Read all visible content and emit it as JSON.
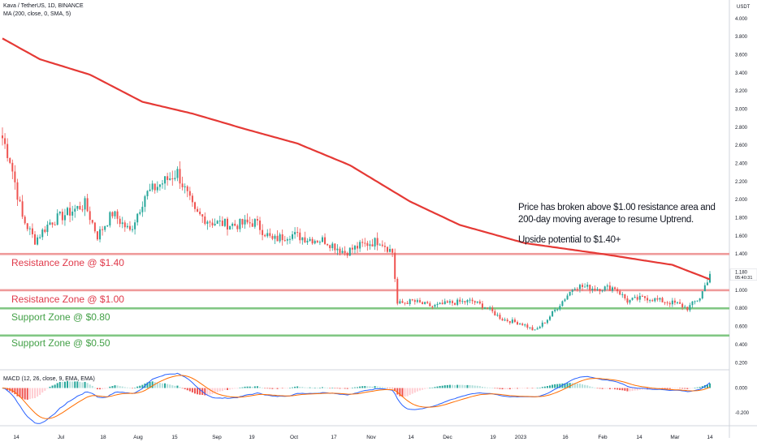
{
  "header": {
    "title": "Kava / TetherUS, 1D, BINANCE",
    "ma_label": "MA (200, close, 0, SMA, 5)",
    "macd_label": "MACD (12, 26, close, 9, EMA, EMA)"
  },
  "annotation": {
    "line1": "Price has broken above $1.00 resistance area and",
    "line2": "200-day moving average to resume Uptrend.",
    "line3": "Upside potential to $1.40+"
  },
  "zones": [
    {
      "label": "Resistance Zone @ $1.40",
      "price": 1.4,
      "kind": "resistance"
    },
    {
      "label": "Resistance Zone @ $1.00",
      "price": 1.0,
      "kind": "resistance"
    },
    {
      "label": "Support Zone @ $0.80",
      "price": 0.8,
      "kind": "support"
    },
    {
      "label": "Support Zone @ $0.50",
      "price": 0.5,
      "kind": "support"
    }
  ],
  "price_axis": {
    "currency": "USDT",
    "ticks": [
      "0.200",
      "0.400",
      "0.600",
      "0.800",
      "1.000",
      "1.200",
      "1.400",
      "1.600",
      "1.800",
      "2.000",
      "2.200",
      "2.400",
      "2.600",
      "2.800",
      "3.000",
      "3.200",
      "3.400",
      "3.600",
      "3.800",
      "4.000"
    ],
    "last_price": "1.180",
    "countdown": "05:40:31"
  },
  "macd_axis": {
    "ticks": [
      "0.000",
      "-0.200"
    ]
  },
  "time_axis": {
    "labels": [
      "14",
      "Jul",
      "18",
      "Aug",
      "15",
      "Sep",
      "19",
      "Oct",
      "17",
      "Nov",
      "14",
      "Dec",
      "19",
      "2023",
      "16",
      "Feb",
      "14",
      "Mar",
      "14"
    ]
  },
  "colors": {
    "up": "#26a69a",
    "down": "#ef5350",
    "ma": "#e53935",
    "resistance": "#ef9a9a",
    "support": "#81c784",
    "macd_line": "#2962ff",
    "signal_line": "#ff6d00"
  },
  "chart_data": {
    "type": "candlestick",
    "title": "Kava / TetherUS, 1D, BINANCE",
    "x_range": [
      "2022-06-05",
      "2023-03-15"
    ],
    "ylim": [
      0.2,
      4.0
    ],
    "close_keypoints": [
      {
        "date": "2022-06-05",
        "value": 2.68
      },
      {
        "date": "2022-06-08",
        "value": 2.45
      },
      {
        "date": "2022-06-13",
        "value": 1.8
      },
      {
        "date": "2022-06-18",
        "value": 1.55
      },
      {
        "date": "2022-06-24",
        "value": 1.75
      },
      {
        "date": "2022-07-01",
        "value": 1.85
      },
      {
        "date": "2022-07-08",
        "value": 1.95
      },
      {
        "date": "2022-07-13",
        "value": 1.6
      },
      {
        "date": "2022-07-19",
        "value": 1.85
      },
      {
        "date": "2022-07-26",
        "value": 1.65
      },
      {
        "date": "2022-08-01",
        "value": 2.05
      },
      {
        "date": "2022-08-06",
        "value": 2.15
      },
      {
        "date": "2022-08-14",
        "value": 2.3
      },
      {
        "date": "2022-08-21",
        "value": 1.85
      },
      {
        "date": "2022-08-28",
        "value": 1.75
      },
      {
        "date": "2022-09-06",
        "value": 1.72
      },
      {
        "date": "2022-09-14",
        "value": 1.75
      },
      {
        "date": "2022-09-21",
        "value": 1.55
      },
      {
        "date": "2022-09-28",
        "value": 1.62
      },
      {
        "date": "2022-10-05",
        "value": 1.57
      },
      {
        "date": "2022-10-12",
        "value": 1.55
      },
      {
        "date": "2022-10-20",
        "value": 1.42
      },
      {
        "date": "2022-10-27",
        "value": 1.5
      },
      {
        "date": "2022-11-03",
        "value": 1.55
      },
      {
        "date": "2022-11-08",
        "value": 1.42
      },
      {
        "date": "2022-11-10",
        "value": 0.85
      },
      {
        "date": "2022-11-16",
        "value": 0.88
      },
      {
        "date": "2022-11-24",
        "value": 0.82
      },
      {
        "date": "2022-12-01",
        "value": 0.86
      },
      {
        "date": "2022-12-10",
        "value": 0.88
      },
      {
        "date": "2022-12-16",
        "value": 0.8
      },
      {
        "date": "2022-12-22",
        "value": 0.68
      },
      {
        "date": "2022-12-30",
        "value": 0.63
      },
      {
        "date": "2023-01-04",
        "value": 0.55
      },
      {
        "date": "2023-01-09",
        "value": 0.68
      },
      {
        "date": "2023-01-15",
        "value": 0.88
      },
      {
        "date": "2023-01-20",
        "value": 1.05
      },
      {
        "date": "2023-01-28",
        "value": 1.02
      },
      {
        "date": "2023-02-05",
        "value": 1.03
      },
      {
        "date": "2023-02-10",
        "value": 0.88
      },
      {
        "date": "2023-02-17",
        "value": 0.92
      },
      {
        "date": "2023-02-24",
        "value": 0.88
      },
      {
        "date": "2023-03-02",
        "value": 0.85
      },
      {
        "date": "2023-03-06",
        "value": 0.8
      },
      {
        "date": "2023-03-11",
        "value": 0.92
      },
      {
        "date": "2023-03-15",
        "value": 1.18
      }
    ],
    "ma200_keypoints": [
      {
        "date": "2022-06-05",
        "value": 3.78
      },
      {
        "date": "2022-06-20",
        "value": 3.55
      },
      {
        "date": "2022-07-10",
        "value": 3.38
      },
      {
        "date": "2022-07-31",
        "value": 3.08
      },
      {
        "date": "2022-08-20",
        "value": 2.95
      },
      {
        "date": "2022-09-10",
        "value": 2.78
      },
      {
        "date": "2022-10-01",
        "value": 2.62
      },
      {
        "date": "2022-10-22",
        "value": 2.38
      },
      {
        "date": "2022-11-15",
        "value": 1.98
      },
      {
        "date": "2022-12-05",
        "value": 1.72
      },
      {
        "date": "2022-12-31",
        "value": 1.52
      },
      {
        "date": "2023-01-31",
        "value": 1.4
      },
      {
        "date": "2023-02-28",
        "value": 1.28
      },
      {
        "date": "2023-03-15",
        "value": 1.12
      }
    ],
    "horizontal_levels": [
      1.4,
      1.0,
      0.8,
      0.5
    ],
    "macd_ylim": [
      -0.38,
      0.16
    ]
  }
}
